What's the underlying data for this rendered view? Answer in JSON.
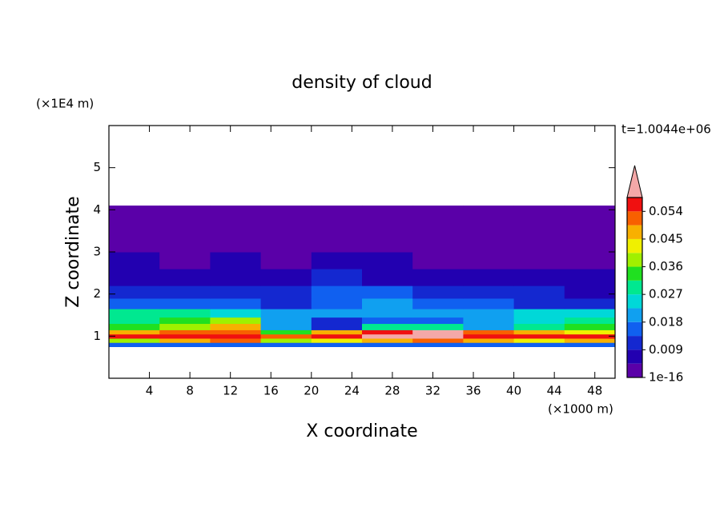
{
  "chart_data": {
    "type": "contour",
    "title": "density of cloud",
    "xlabel": "X coordinate",
    "ylabel": "Z coordinate",
    "xunit": "(×1000 m)",
    "yunit": "(×1E4 m)",
    "annotation": "t=1.0044e+06",
    "xlim": [
      0,
      50
    ],
    "ylim": [
      0,
      6
    ],
    "xticks": [
      4,
      8,
      12,
      16,
      20,
      24,
      28,
      32,
      36,
      40,
      44,
      48
    ],
    "yticks": [
      1,
      2,
      3,
      4,
      5
    ],
    "x": [
      0,
      5,
      10,
      15,
      20,
      25,
      30,
      35,
      40,
      45,
      50
    ],
    "z": [
      0.75,
      0.85,
      0.95,
      1.05,
      1.15,
      1.3,
      1.45,
      1.65,
      1.9,
      2.2,
      2.6,
      3.0,
      3.5,
      4.1
    ],
    "values": [
      [
        0.016,
        0.015,
        0.014,
        0.016,
        0.015,
        0.017,
        0.015,
        0.014,
        0.016,
        0.015
      ],
      [
        0.04,
        0.046,
        0.05,
        0.038,
        0.044,
        0.048,
        0.05,
        0.047,
        0.043,
        0.046
      ],
      [
        0.056,
        0.055,
        0.057,
        0.05,
        0.056,
        0.06,
        0.062,
        0.056,
        0.055,
        0.054
      ],
      [
        0.045,
        0.05,
        0.052,
        0.035,
        0.048,
        0.058,
        0.062,
        0.05,
        0.046,
        0.044
      ],
      [
        0.035,
        0.04,
        0.045,
        0.02,
        0.012,
        0.03,
        0.028,
        0.02,
        0.03,
        0.032
      ],
      [
        0.03,
        0.033,
        0.036,
        0.018,
        0.012,
        0.015,
        0.014,
        0.018,
        0.025,
        0.028
      ],
      [
        0.028,
        0.03,
        0.025,
        0.02,
        0.018,
        0.02,
        0.02,
        0.022,
        0.024,
        0.026
      ],
      [
        0.015,
        0.016,
        0.014,
        0.012,
        0.014,
        0.018,
        0.016,
        0.014,
        0.012,
        0.011
      ],
      [
        0.01,
        0.011,
        0.01,
        0.012,
        0.015,
        0.016,
        0.013,
        0.01,
        0.009,
        0.008
      ],
      [
        0.008,
        0.007,
        0.008,
        0.007,
        0.009,
        0.008,
        0.006,
        0.006,
        0.005,
        0.005
      ],
      [
        0.005,
        0.004,
        0.005,
        0.004,
        0.005,
        0.005,
        0.004,
        0.004,
        0.003,
        0.003
      ],
      [
        0.003,
        0.003,
        0.003,
        0.003,
        0.003,
        0.004,
        0.003,
        0.003,
        0.003,
        0.003
      ],
      [
        0.002,
        0.002,
        0.002,
        0.002,
        0.002,
        0.002,
        0.002,
        0.002,
        0.002,
        0.002
      ]
    ],
    "levels": [
      1e-16,
      0.0045,
      0.009,
      0.0135,
      0.018,
      0.0225,
      0.027,
      0.0315,
      0.036,
      0.0405,
      0.045,
      0.0495,
      0.054,
      0.0585
    ],
    "colors": [
      "#5a00a8",
      "#2200b0",
      "#1428d0",
      "#1060f0",
      "#10a0f0",
      "#00d8d8",
      "#00e890",
      "#20e020",
      "#a0f000",
      "#f0f000",
      "#f8b000",
      "#f86000",
      "#f01010"
    ],
    "extend_color": "#f4a8a8",
    "cbarticks": [
      {
        "value": 1e-16,
        "label": "1e-16"
      },
      0.009,
      0.018,
      0.027,
      0.036,
      0.045,
      0.054
    ]
  }
}
